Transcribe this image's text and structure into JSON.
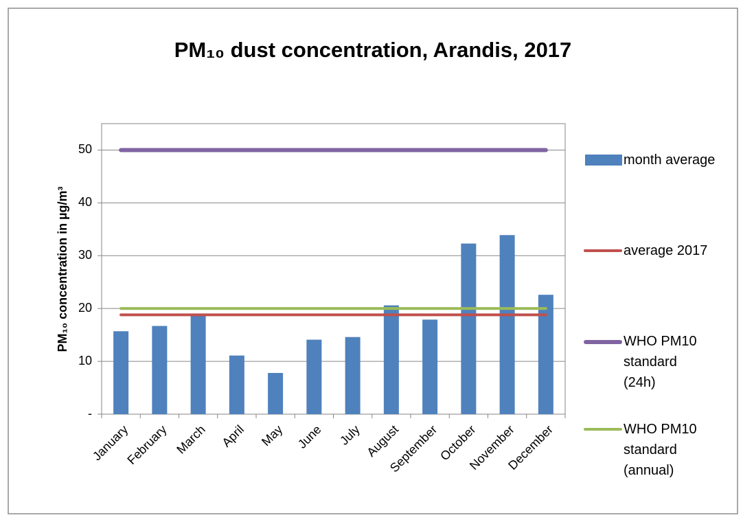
{
  "chart_data": {
    "type": "bar",
    "title": "PM₁₀ dust concentration, Arandis, 2017",
    "y_label": "PM₁₀ concentration in µg/m³",
    "categories": [
      "January",
      "February",
      "March",
      "April",
      "May",
      "June",
      "July",
      "August",
      "September",
      "October",
      "November",
      "December"
    ],
    "series": [
      {
        "name": "month average",
        "type": "bar",
        "color": "#4f81bd",
        "values": [
          15.7,
          16.7,
          18.8,
          11.1,
          7.8,
          14.1,
          14.6,
          20.6,
          17.9,
          32.3,
          33.9,
          22.6
        ]
      },
      {
        "name": "average 2017",
        "type": "line",
        "color": "#c0504d",
        "values": [
          18.8,
          18.8,
          18.8,
          18.8,
          18.8,
          18.8,
          18.8,
          18.8,
          18.8,
          18.8,
          18.8,
          18.8
        ]
      },
      {
        "name": "WHO PM10 standard (24h)",
        "type": "line",
        "color": "#8064a2",
        "values": [
          50,
          50,
          50,
          50,
          50,
          50,
          50,
          50,
          50,
          50,
          50,
          50
        ]
      },
      {
        "name": "WHO PM10 standard (annual)",
        "type": "line",
        "color": "#9bbb59",
        "values": [
          20,
          20,
          20,
          20,
          20,
          20,
          20,
          20,
          20,
          20,
          20,
          20
        ]
      }
    ],
    "ylim": [
      0,
      55
    ],
    "yticks": [
      {
        "value": 0,
        "label": "-"
      },
      10,
      20,
      30,
      40,
      50
    ],
    "grid": true,
    "legend": "right"
  }
}
